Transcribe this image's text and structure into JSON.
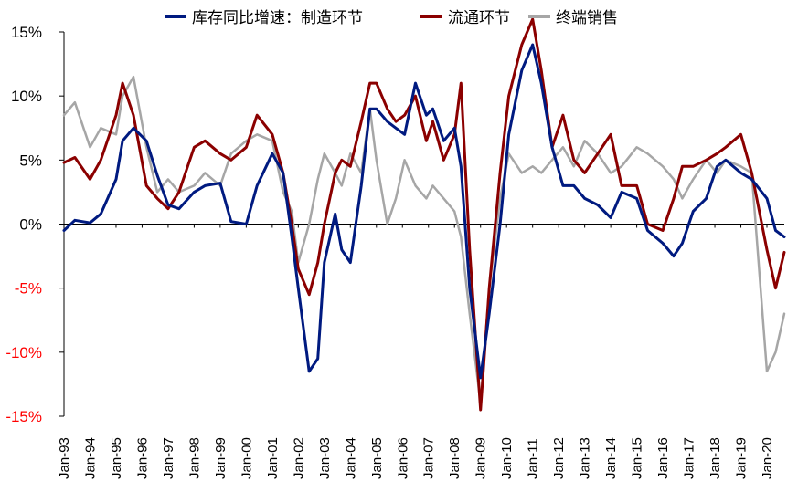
{
  "chart_data": {
    "type": "line",
    "title": "",
    "xlabel": "",
    "ylabel": "",
    "ylim": [
      -0.15,
      0.15
    ],
    "yticks": [
      {
        "value": 0.15,
        "label": "15%"
      },
      {
        "value": 0.1,
        "label": "10%"
      },
      {
        "value": 0.05,
        "label": "5%"
      },
      {
        "value": 0.0,
        "label": "0%"
      },
      {
        "value": -0.05,
        "label": "-5%"
      },
      {
        "value": -0.1,
        "label": "-10%"
      },
      {
        "value": -0.15,
        "label": "-15%"
      }
    ],
    "xticks": [
      "Jan-93",
      "Jan-94",
      "Jan-95",
      "Jan-96",
      "Jan-97",
      "Jan-98",
      "Jan-99",
      "Jan-00",
      "Jan-01",
      "Jan-02",
      "Jan-03",
      "Jan-04",
      "Jan-05",
      "Jan-06",
      "Jan-07",
      "Jan-08",
      "Jan-09",
      "Jan-10",
      "Jan-11",
      "Jan-12",
      "Jan-13",
      "Jan-14",
      "Jan-15",
      "Jan-16",
      "Jan-17",
      "Jan-18",
      "Jan-19",
      "Jan-20"
    ],
    "x_start": "1993-01",
    "x_end": "2020-09",
    "legend_position": "top",
    "colors": {
      "manufacturing": "#001a80",
      "distribution": "#8b0000",
      "retail": "#a6a6a6",
      "negative_tick_label": "#ff0000",
      "positive_tick_label": "#000000"
    },
    "series": [
      {
        "name": "库存同比增速：制造环节",
        "key": "manufacturing",
        "x": [
          "1993-01",
          "1993-06",
          "1994-01",
          "1994-06",
          "1995-01",
          "1995-04",
          "1995-09",
          "1996-03",
          "1996-08",
          "1997-01",
          "1997-06",
          "1998-01",
          "1998-06",
          "1999-01",
          "1999-06",
          "2000-01",
          "2000-06",
          "2001-01",
          "2001-06",
          "2001-10",
          "2002-01",
          "2002-06",
          "2002-10",
          "2003-01",
          "2003-06",
          "2003-09",
          "2004-01",
          "2004-06",
          "2004-10",
          "2005-01",
          "2005-06",
          "2005-10",
          "2006-02",
          "2006-07",
          "2006-12",
          "2007-03",
          "2007-08",
          "2008-01",
          "2008-04",
          "2008-08",
          "2009-01",
          "2009-05",
          "2009-10",
          "2010-02",
          "2010-08",
          "2011-01",
          "2011-05",
          "2011-10",
          "2012-03",
          "2012-08",
          "2013-01",
          "2013-07",
          "2014-01",
          "2014-06",
          "2015-01",
          "2015-06",
          "2016-01",
          "2016-06",
          "2016-10",
          "2017-03",
          "2017-09",
          "2018-02",
          "2018-06",
          "2019-01",
          "2019-06",
          "2020-01",
          "2020-05",
          "2020-09"
        ],
        "values": [
          -0.005,
          0.003,
          0.001,
          0.008,
          0.035,
          0.065,
          0.075,
          0.065,
          0.038,
          0.015,
          0.012,
          0.025,
          0.03,
          0.032,
          0.002,
          0.0,
          0.03,
          0.055,
          0.04,
          -0.01,
          -0.05,
          -0.115,
          -0.105,
          -0.03,
          0.008,
          -0.02,
          -0.03,
          0.03,
          0.09,
          0.09,
          0.08,
          0.075,
          0.07,
          0.11,
          0.085,
          0.09,
          0.065,
          0.075,
          0.045,
          -0.05,
          -0.12,
          -0.07,
          0.0,
          0.07,
          0.12,
          0.14,
          0.11,
          0.06,
          0.03,
          0.03,
          0.02,
          0.015,
          0.005,
          0.025,
          0.02,
          -0.005,
          -0.015,
          -0.025,
          -0.015,
          0.01,
          0.02,
          0.045,
          0.05,
          0.04,
          0.035,
          0.02,
          -0.005,
          -0.01
        ]
      },
      {
        "name": "流通环节",
        "key": "distribution",
        "x": [
          "1993-01",
          "1993-06",
          "1994-01",
          "1994-06",
          "1995-01",
          "1995-04",
          "1995-09",
          "1996-03",
          "1996-08",
          "1997-01",
          "1997-06",
          "1998-01",
          "1998-06",
          "1999-01",
          "1999-06",
          "2000-01",
          "2000-06",
          "2001-01",
          "2001-06",
          "2001-10",
          "2002-01",
          "2002-06",
          "2002-10",
          "2003-01",
          "2003-06",
          "2003-09",
          "2004-01",
          "2004-06",
          "2004-10",
          "2005-01",
          "2005-06",
          "2005-10",
          "2006-02",
          "2006-07",
          "2006-12",
          "2007-03",
          "2007-08",
          "2008-01",
          "2008-04",
          "2008-08",
          "2009-01",
          "2009-05",
          "2009-10",
          "2010-02",
          "2010-08",
          "2011-01",
          "2011-05",
          "2011-10",
          "2012-03",
          "2012-08",
          "2013-01",
          "2013-07",
          "2014-01",
          "2014-06",
          "2015-01",
          "2015-06",
          "2016-01",
          "2016-06",
          "2016-10",
          "2017-03",
          "2017-09",
          "2018-02",
          "2018-06",
          "2019-01",
          "2019-06",
          "2020-01",
          "2020-05",
          "2020-09"
        ],
        "values": [
          0.048,
          0.052,
          0.035,
          0.05,
          0.085,
          0.11,
          0.085,
          0.03,
          0.02,
          0.012,
          0.025,
          0.06,
          0.065,
          0.055,
          0.05,
          0.06,
          0.085,
          0.07,
          0.04,
          0.0,
          -0.035,
          -0.055,
          -0.03,
          0.0,
          0.04,
          0.05,
          0.045,
          0.08,
          0.11,
          0.11,
          0.09,
          0.08,
          0.085,
          0.1,
          0.065,
          0.08,
          0.05,
          0.07,
          0.11,
          -0.02,
          -0.145,
          -0.05,
          0.04,
          0.1,
          0.14,
          0.16,
          0.12,
          0.06,
          0.085,
          0.05,
          0.04,
          0.055,
          0.07,
          0.03,
          0.03,
          0.0,
          -0.005,
          0.02,
          0.045,
          0.045,
          0.05,
          0.055,
          0.06,
          0.07,
          0.04,
          -0.02,
          -0.05,
          -0.022
        ]
      },
      {
        "name": "终端销售",
        "key": "retail",
        "x": [
          "1993-01",
          "1993-06",
          "1994-01",
          "1994-06",
          "1995-01",
          "1995-04",
          "1995-09",
          "1996-03",
          "1996-08",
          "1997-01",
          "1997-06",
          "1998-01",
          "1998-06",
          "1999-01",
          "1999-06",
          "2000-01",
          "2000-06",
          "2001-01",
          "2001-06",
          "2001-10",
          "2002-01",
          "2002-06",
          "2002-10",
          "2003-01",
          "2003-06",
          "2003-09",
          "2004-01",
          "2004-06",
          "2004-10",
          "2005-01",
          "2005-06",
          "2005-10",
          "2006-02",
          "2006-07",
          "2006-12",
          "2007-03",
          "2007-08",
          "2008-01",
          "2008-04",
          "2008-08",
          "2009-01",
          "2009-05",
          "2009-10",
          "2010-02",
          "2010-08",
          "2011-01",
          "2011-05",
          "2011-10",
          "2012-03",
          "2012-08",
          "2013-01",
          "2013-07",
          "2014-01",
          "2014-06",
          "2015-01",
          "2015-06",
          "2016-01",
          "2016-06",
          "2016-10",
          "2017-03",
          "2017-09",
          "2018-02",
          "2018-06",
          "2019-01",
          "2019-06",
          "2020-01",
          "2020-05",
          "2020-09"
        ],
        "values": [
          0.085,
          0.095,
          0.06,
          0.075,
          0.07,
          0.1,
          0.115,
          0.06,
          0.025,
          0.035,
          0.025,
          0.03,
          0.04,
          0.03,
          0.055,
          0.065,
          0.07,
          0.065,
          0.025,
          0.01,
          -0.03,
          0.0,
          0.035,
          0.055,
          0.04,
          0.03,
          0.055,
          0.04,
          0.09,
          0.05,
          0.0,
          0.02,
          0.05,
          0.03,
          0.02,
          0.03,
          0.02,
          0.01,
          -0.01,
          -0.07,
          -0.14,
          -0.05,
          0.02,
          0.055,
          0.04,
          0.045,
          0.04,
          0.05,
          0.06,
          0.045,
          0.065,
          0.055,
          0.04,
          0.045,
          0.06,
          0.055,
          0.045,
          0.035,
          0.02,
          0.035,
          0.05,
          0.04,
          0.05,
          0.045,
          0.04,
          -0.115,
          -0.1,
          -0.07
        ]
      }
    ]
  }
}
